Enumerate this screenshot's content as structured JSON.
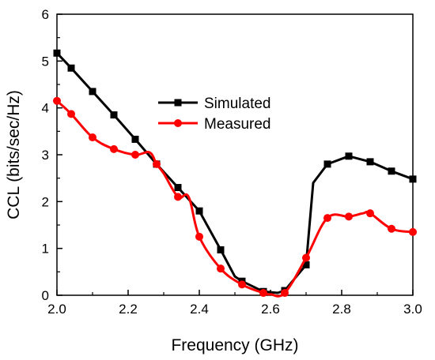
{
  "chart_data": {
    "type": "line",
    "title": "",
    "xlabel": "Frequency (GHz)",
    "ylabel": "CCL (bits/sec/Hz)",
    "xlim": [
      2.0,
      3.0
    ],
    "ylim": [
      0,
      6
    ],
    "xticks": [
      2.0,
      2.2,
      2.4,
      2.6,
      2.8,
      3.0
    ],
    "xtick_labels": [
      "2.0",
      "2.2",
      "2.4",
      "2.6",
      "2.8",
      "3.0"
    ],
    "yticks": [
      0,
      1,
      2,
      3,
      4,
      5,
      6
    ],
    "ytick_labels": [
      "0",
      "1",
      "2",
      "3",
      "4",
      "5",
      "6"
    ],
    "grid": false,
    "legend_position": "upper-center",
    "series": [
      {
        "name": "Simulated",
        "color": "#000000",
        "marker": "square",
        "x": [
          2.0,
          2.04,
          2.1,
          2.16,
          2.22,
          2.28,
          2.34,
          2.4,
          2.46,
          2.5,
          2.52,
          2.58,
          2.62,
          2.64,
          2.7,
          2.72,
          2.76,
          2.82,
          2.88,
          2.94,
          3.0
        ],
        "y": [
          5.17,
          4.85,
          4.35,
          3.85,
          3.33,
          2.8,
          2.3,
          1.8,
          0.97,
          0.4,
          0.3,
          0.08,
          0.05,
          0.1,
          0.65,
          2.4,
          2.8,
          2.97,
          2.85,
          2.65,
          2.48
        ],
        "marker_x": [
          2.0,
          2.04,
          2.1,
          2.16,
          2.22,
          2.28,
          2.34,
          2.4,
          2.46,
          2.52,
          2.58,
          2.64,
          2.7,
          2.76,
          2.82,
          2.88,
          2.94,
          3.0
        ],
        "marker_y": [
          5.17,
          4.85,
          4.35,
          3.85,
          3.33,
          2.8,
          2.3,
          1.8,
          0.97,
          0.3,
          0.08,
          0.1,
          0.65,
          2.8,
          2.97,
          2.85,
          2.65,
          2.48
        ]
      },
      {
        "name": "Measured",
        "color": "#ff0000",
        "marker": "circle",
        "x": [
          2.0,
          2.04,
          2.1,
          2.16,
          2.22,
          2.26,
          2.28,
          2.3,
          2.34,
          2.37,
          2.4,
          2.46,
          2.52,
          2.58,
          2.6,
          2.64,
          2.7,
          2.76,
          2.82,
          2.86,
          2.88,
          2.94,
          3.0
        ],
        "y": [
          4.15,
          3.87,
          3.37,
          3.12,
          3.0,
          3.05,
          2.8,
          2.6,
          2.1,
          2.1,
          1.25,
          0.57,
          0.23,
          0.05,
          0.02,
          0.05,
          0.8,
          1.65,
          1.68,
          1.75,
          1.75,
          1.42,
          1.35
        ],
        "marker_x": [
          2.0,
          2.04,
          2.1,
          2.16,
          2.22,
          2.28,
          2.34,
          2.4,
          2.46,
          2.52,
          2.58,
          2.64,
          2.7,
          2.76,
          2.82,
          2.88,
          2.94,
          3.0
        ],
        "marker_y": [
          4.15,
          3.87,
          3.37,
          3.12,
          3.0,
          2.8,
          2.1,
          1.25,
          0.57,
          0.23,
          0.05,
          0.05,
          0.8,
          1.65,
          1.68,
          1.75,
          1.42,
          1.35
        ]
      }
    ]
  }
}
